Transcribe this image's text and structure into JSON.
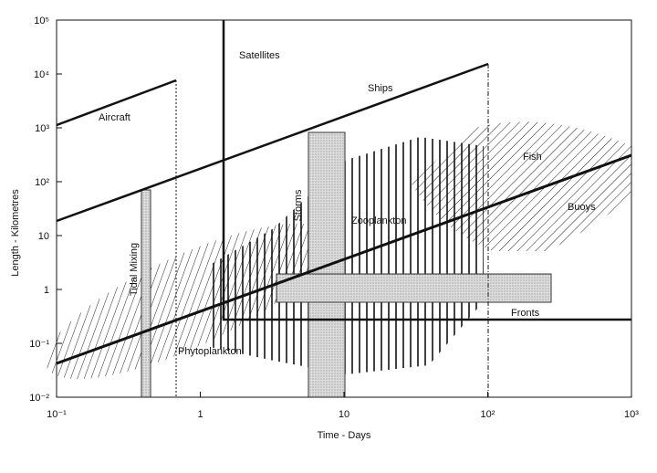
{
  "chart_data": {
    "type": "diagram",
    "xlabel": "Time - Days",
    "ylabel": "Length - Kilometres",
    "xlog": true,
    "ylog": true,
    "xlim": [
      0.1,
      1000
    ],
    "ylim": [
      0.01,
      100000
    ],
    "xticks": [
      {
        "value": 0.1,
        "label": "10⁻¹"
      },
      1,
      10,
      {
        "value": 100,
        "label": "10²"
      },
      {
        "value": 1000,
        "label": "10³"
      }
    ],
    "yticks": [
      {
        "value": 0.01,
        "label": "10⁻²"
      },
      {
        "value": 0.1,
        "label": "10⁻¹"
      },
      1,
      10,
      {
        "value": 100,
        "label": "10²"
      },
      {
        "value": 1000,
        "label": "10³"
      },
      {
        "value": 10000,
        "label": "10⁴"
      },
      {
        "value": 100000,
        "label": "10⁵"
      }
    ],
    "annotations": [
      "Satellites",
      "Ships",
      "Aircraft",
      "Fish",
      "Buoys",
      "Storms",
      "Zooplankton",
      "Tidal Mixing",
      "Fronts",
      "Phytoplankton"
    ]
  }
}
